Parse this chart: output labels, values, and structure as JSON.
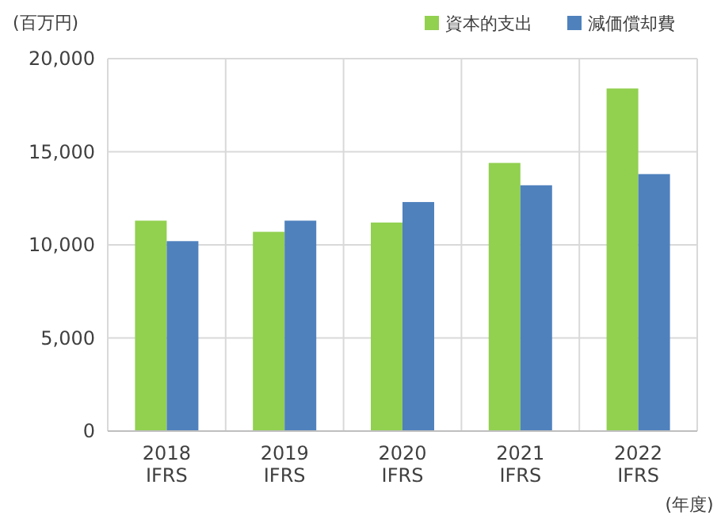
{
  "chart_data": {
    "type": "bar",
    "ylabel": "(百万円)",
    "categories": [
      "2018\nIFRS",
      "2019\nIFRS",
      "2020\nIFRS",
      "2021\nIFRS",
      "2022\nIFRS"
    ],
    "series": [
      {
        "name": "資本的支出",
        "color": "#92d050",
        "values": [
          11300,
          10700,
          11200,
          14400,
          18400
        ]
      },
      {
        "name": "減価償却費",
        "color": "#4f81bd",
        "values": [
          10200,
          11300,
          12300,
          13200,
          13800
        ]
      }
    ],
    "ylim": [
      0,
      20000
    ],
    "yticks": [
      {
        "value": 0,
        "label": "0"
      },
      {
        "value": 5000,
        "label": "5,000"
      },
      {
        "value": 10000,
        "label": "10,000"
      },
      {
        "value": 15000,
        "label": "15,000"
      },
      {
        "value": 20000,
        "label": "20,000"
      }
    ],
    "grid": true,
    "legend": "top right",
    "annotations": [
      "(年度)"
    ]
  }
}
